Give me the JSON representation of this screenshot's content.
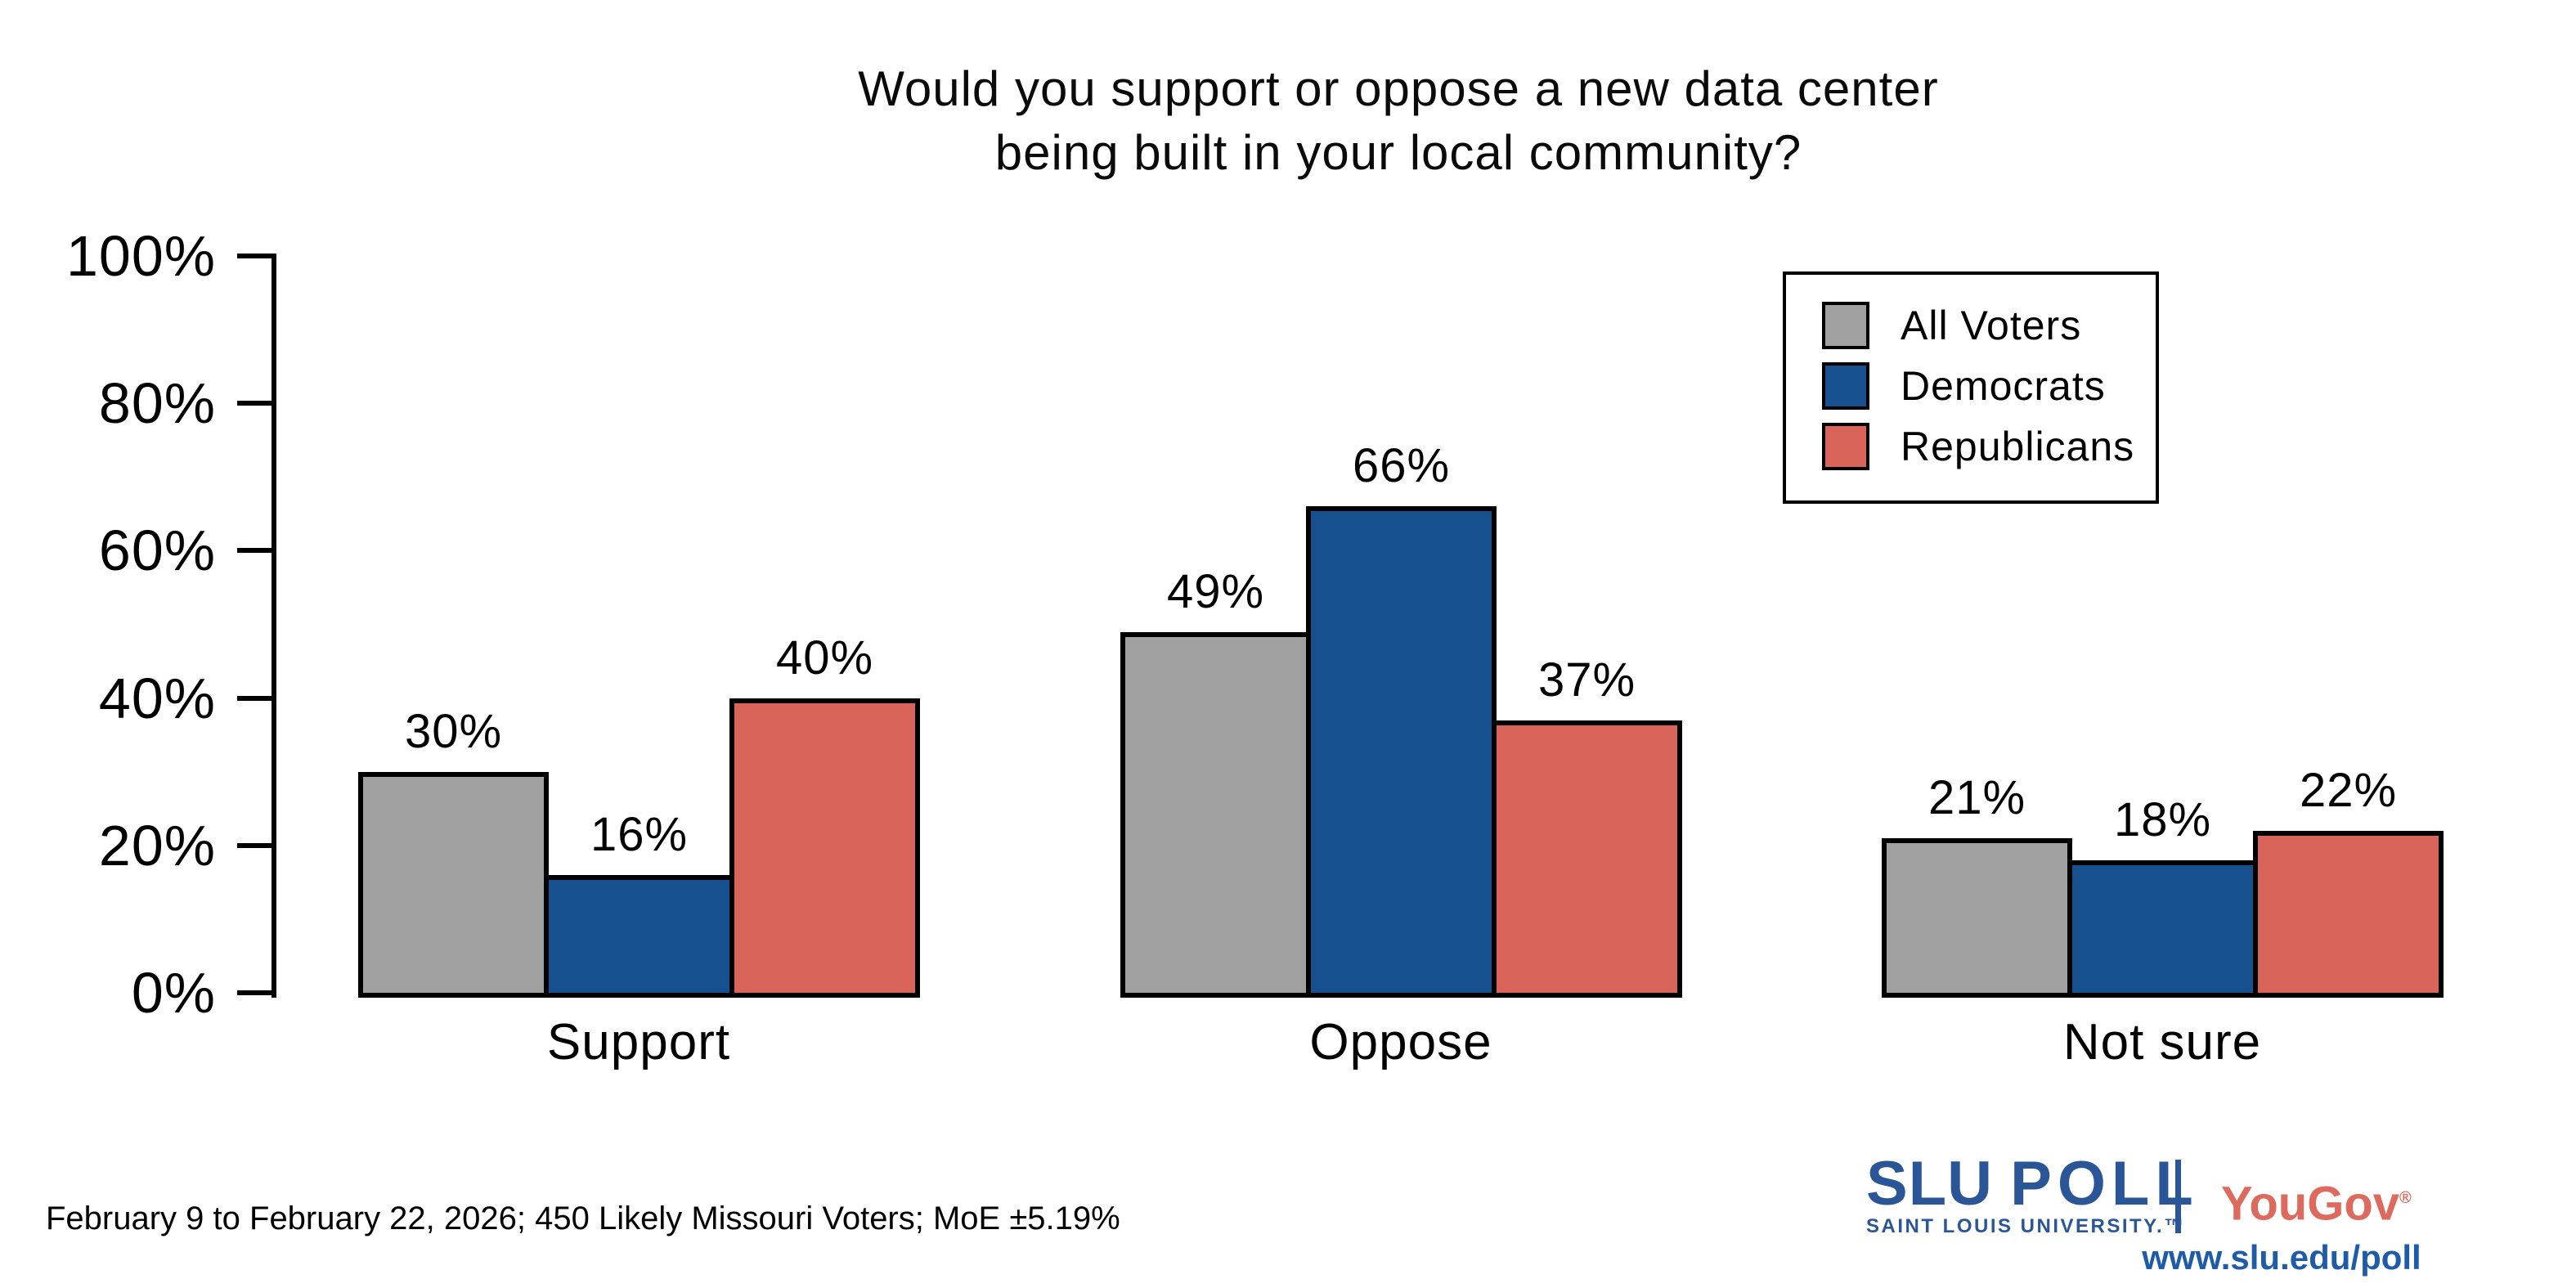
{
  "title": {
    "line1": "Would you support or oppose a new data center",
    "line2": "being built in your local community?"
  },
  "chart_data": {
    "type": "bar",
    "title": "Would you support or oppose a new data center being built in your local community?",
    "categories": [
      "Support",
      "Oppose",
      "Not sure"
    ],
    "series": [
      {
        "name": "All Voters",
        "color": "#a0a0a0",
        "values": [
          30,
          49,
          21
        ]
      },
      {
        "name": "Democrats",
        "color": "#17508f",
        "values": [
          16,
          66,
          18
        ]
      },
      {
        "name": "Republicans",
        "color": "#d9655a",
        "values": [
          40,
          37,
          22
        ]
      }
    ],
    "bar_value_labels": [
      [
        "30%",
        "49%",
        "21%"
      ],
      [
        "16%",
        "66%",
        "18%"
      ],
      [
        "40%",
        "37%",
        "22%"
      ]
    ],
    "xlabel": "",
    "ylabel": "",
    "ylim": [
      0,
      100
    ],
    "yticks": [
      "0%",
      "20%",
      "40%",
      "60%",
      "80%",
      "100%"
    ],
    "grid": false,
    "legend_position": "top-right",
    "bar_outline_color": "#000000"
  },
  "footnote": "February 9 to February 22, 2026; 450 Likely Missouri Voters; MoE ±5.19%",
  "branding": {
    "slu": "SLU",
    "poll": "POLL",
    "subtitle": "SAINT LOUIS UNIVERSITY.™",
    "yougov": "YouGov",
    "registered": "®",
    "url": "www.slu.edu/poll",
    "slu_blue": "#2a5697",
    "yougov_red": "#dd6a5c",
    "url_blue": "#1f5ca8"
  }
}
